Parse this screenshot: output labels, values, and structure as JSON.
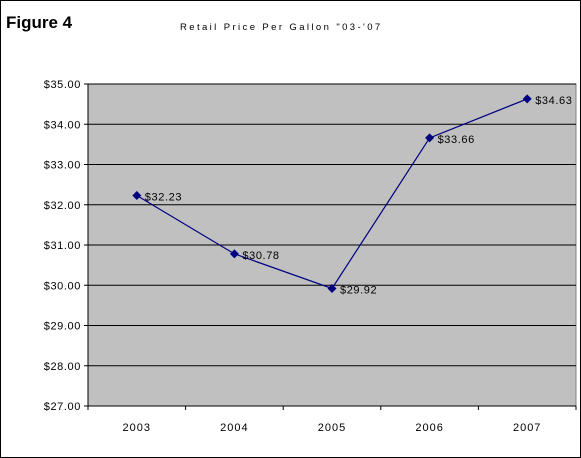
{
  "figure_label": "Figure 4",
  "chart_data": {
    "type": "line",
    "title": "Retail Price Per Gallon \"03-'07",
    "xlabel": "",
    "ylabel": "",
    "categories": [
      "2003",
      "2004",
      "2005",
      "2006",
      "2007"
    ],
    "series": [
      {
        "values": [
          32.23,
          30.78,
          29.92,
          33.66,
          34.63
        ],
        "data_labels": [
          "$32.23",
          "$30.78",
          "$29.92",
          "$33.66",
          "$34.63"
        ],
        "color": "#000080",
        "marker": "diamond"
      }
    ],
    "ylim": [
      27,
      35
    ],
    "y_ticks": [
      "$27.00",
      "$28.00",
      "$29.00",
      "$30.00",
      "$31.00",
      "$32.00",
      "$33.00",
      "$34.00",
      "$35.00"
    ],
    "grid": true,
    "legend": "none",
    "plot_background": "#c0c0c0"
  }
}
